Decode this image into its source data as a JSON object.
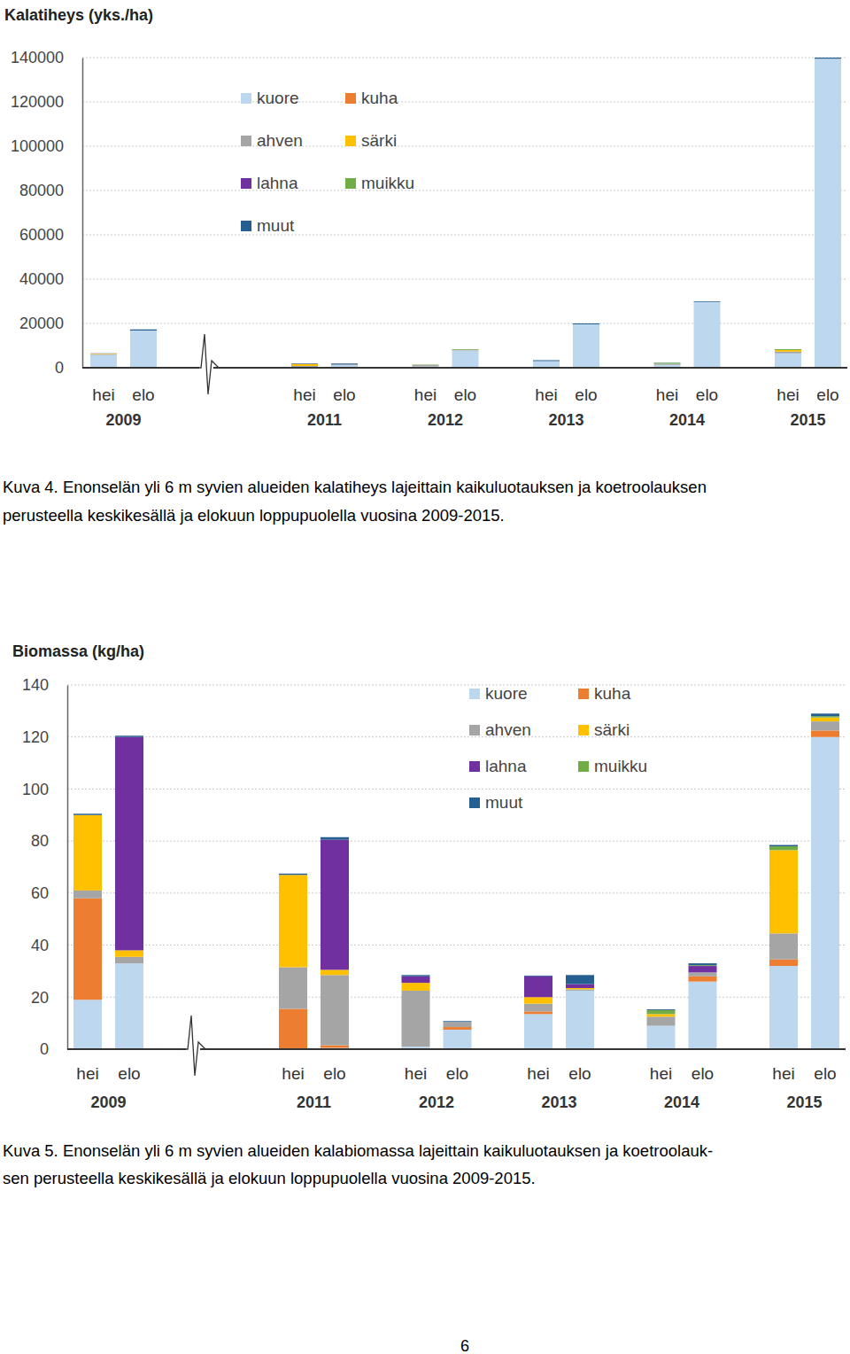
{
  "chart_data": [
    {
      "type": "bar",
      "stacked": true,
      "grid": true,
      "legend": "top",
      "title": "Kalatiheys (yks./ha)",
      "categories": [
        "hei",
        "elo",
        "hei",
        "elo",
        "hei",
        "elo",
        "hei",
        "elo",
        "hei",
        "elo",
        "hei",
        "elo"
      ],
      "category_groups": [
        "2009",
        "2011",
        "2012",
        "2013",
        "2014",
        "2015"
      ],
      "ylim": [
        0,
        140000
      ],
      "yticks": [
        0,
        20000,
        40000,
        60000,
        80000,
        100000,
        120000,
        140000
      ],
      "series": [
        {
          "name": "kuore",
          "color": "#bdd7ee",
          "values": [
            5800,
            16800,
            300,
            1200,
            600,
            7800,
            3000,
            19600,
            1300,
            29700,
            6500,
            139500
          ]
        },
        {
          "name": "kuha",
          "color": "#ed7d31",
          "values": [
            0,
            0,
            0,
            0,
            0,
            0,
            0,
            0,
            0,
            0,
            0,
            0
          ]
        },
        {
          "name": "ahven",
          "color": "#a5a5a5",
          "values": [
            400,
            0,
            500,
            300,
            600,
            300,
            0,
            0,
            500,
            0,
            800,
            0
          ]
        },
        {
          "name": "särki",
          "color": "#ffc000",
          "values": [
            200,
            0,
            900,
            0,
            0,
            0,
            0,
            0,
            0,
            0,
            700,
            0
          ]
        },
        {
          "name": "lahna",
          "color": "#7030a0",
          "values": [
            0,
            0,
            100,
            0,
            0,
            0,
            0,
            0,
            0,
            0,
            0,
            0
          ]
        },
        {
          "name": "muikku",
          "color": "#70ad47",
          "values": [
            0,
            0,
            0,
            0,
            200,
            300,
            0,
            0,
            400,
            0,
            400,
            0
          ]
        },
        {
          "name": "muut",
          "color": "#255e91",
          "values": [
            100,
            500,
            200,
            400,
            0,
            0,
            400,
            400,
            100,
            300,
            0,
            500
          ]
        }
      ],
      "caption": [
        "Kuva 4. Enonselän yli 6 m syvien alueiden kalatiheys lajeittain kaikuluotauksen ja koetroolauksen",
        "perusteella keskikesällä ja elokuun loppupuolella vuosina 2009-2015."
      ]
    },
    {
      "type": "bar",
      "stacked": true,
      "grid": true,
      "legend": "top",
      "title": "Biomassa (kg/ha)",
      "categories": [
        "hei",
        "elo",
        "hei",
        "elo",
        "hei",
        "elo",
        "hei",
        "elo",
        "hei",
        "elo",
        "hei",
        "elo"
      ],
      "category_groups": [
        "2009",
        "2011",
        "2012",
        "2013",
        "2014",
        "2015"
      ],
      "ylim": [
        0,
        140
      ],
      "yticks": [
        0,
        20,
        40,
        60,
        80,
        100,
        120,
        140
      ],
      "series": [
        {
          "name": "kuore",
          "color": "#bdd7ee",
          "values": [
            19,
            33,
            0,
            0.5,
            1,
            7.5,
            13.5,
            22.5,
            9,
            26,
            32,
            120
          ]
        },
        {
          "name": "kuha",
          "color": "#ed7d31",
          "values": [
            39,
            0,
            15.5,
            1,
            0,
            1,
            1,
            0,
            0,
            2,
            2.5,
            2.5
          ]
        },
        {
          "name": "ahven",
          "color": "#a5a5a5",
          "values": [
            3,
            2.5,
            16,
            27,
            21.5,
            2,
            3,
            0.5,
            3.5,
            1.5,
            10,
            3.5
          ]
        },
        {
          "name": "särki",
          "color": "#ffc000",
          "values": [
            29,
            2.5,
            35.5,
            2,
            3,
            0,
            2.5,
            0.5,
            1,
            0,
            32,
            1.5
          ]
        },
        {
          "name": "lahna",
          "color": "#7030a0",
          "values": [
            0,
            82,
            0,
            50,
            2.5,
            0,
            8,
            1.5,
            0,
            2.5,
            0,
            0
          ]
        },
        {
          "name": "muikku",
          "color": "#70ad47",
          "values": [
            0,
            0,
            0,
            0,
            0,
            0,
            0,
            0,
            1.5,
            0.3,
            1.5,
            0.5
          ]
        },
        {
          "name": "muut",
          "color": "#255e91",
          "values": [
            0.5,
            0.5,
            0.5,
            1,
            0.5,
            0.3,
            0.3,
            3.5,
            0.3,
            0.7,
            0.5,
            1
          ]
        }
      ],
      "caption": [
        "Kuva 5. Enonselän yli 6 m syvien alueiden kalabiomassa lajeittain kaikuluotauksen ja koetroolauk-",
        "sen perusteella keskikesällä ja elokuun loppupuolella vuosina 2009-2015."
      ]
    }
  ],
  "page_number": 6
}
